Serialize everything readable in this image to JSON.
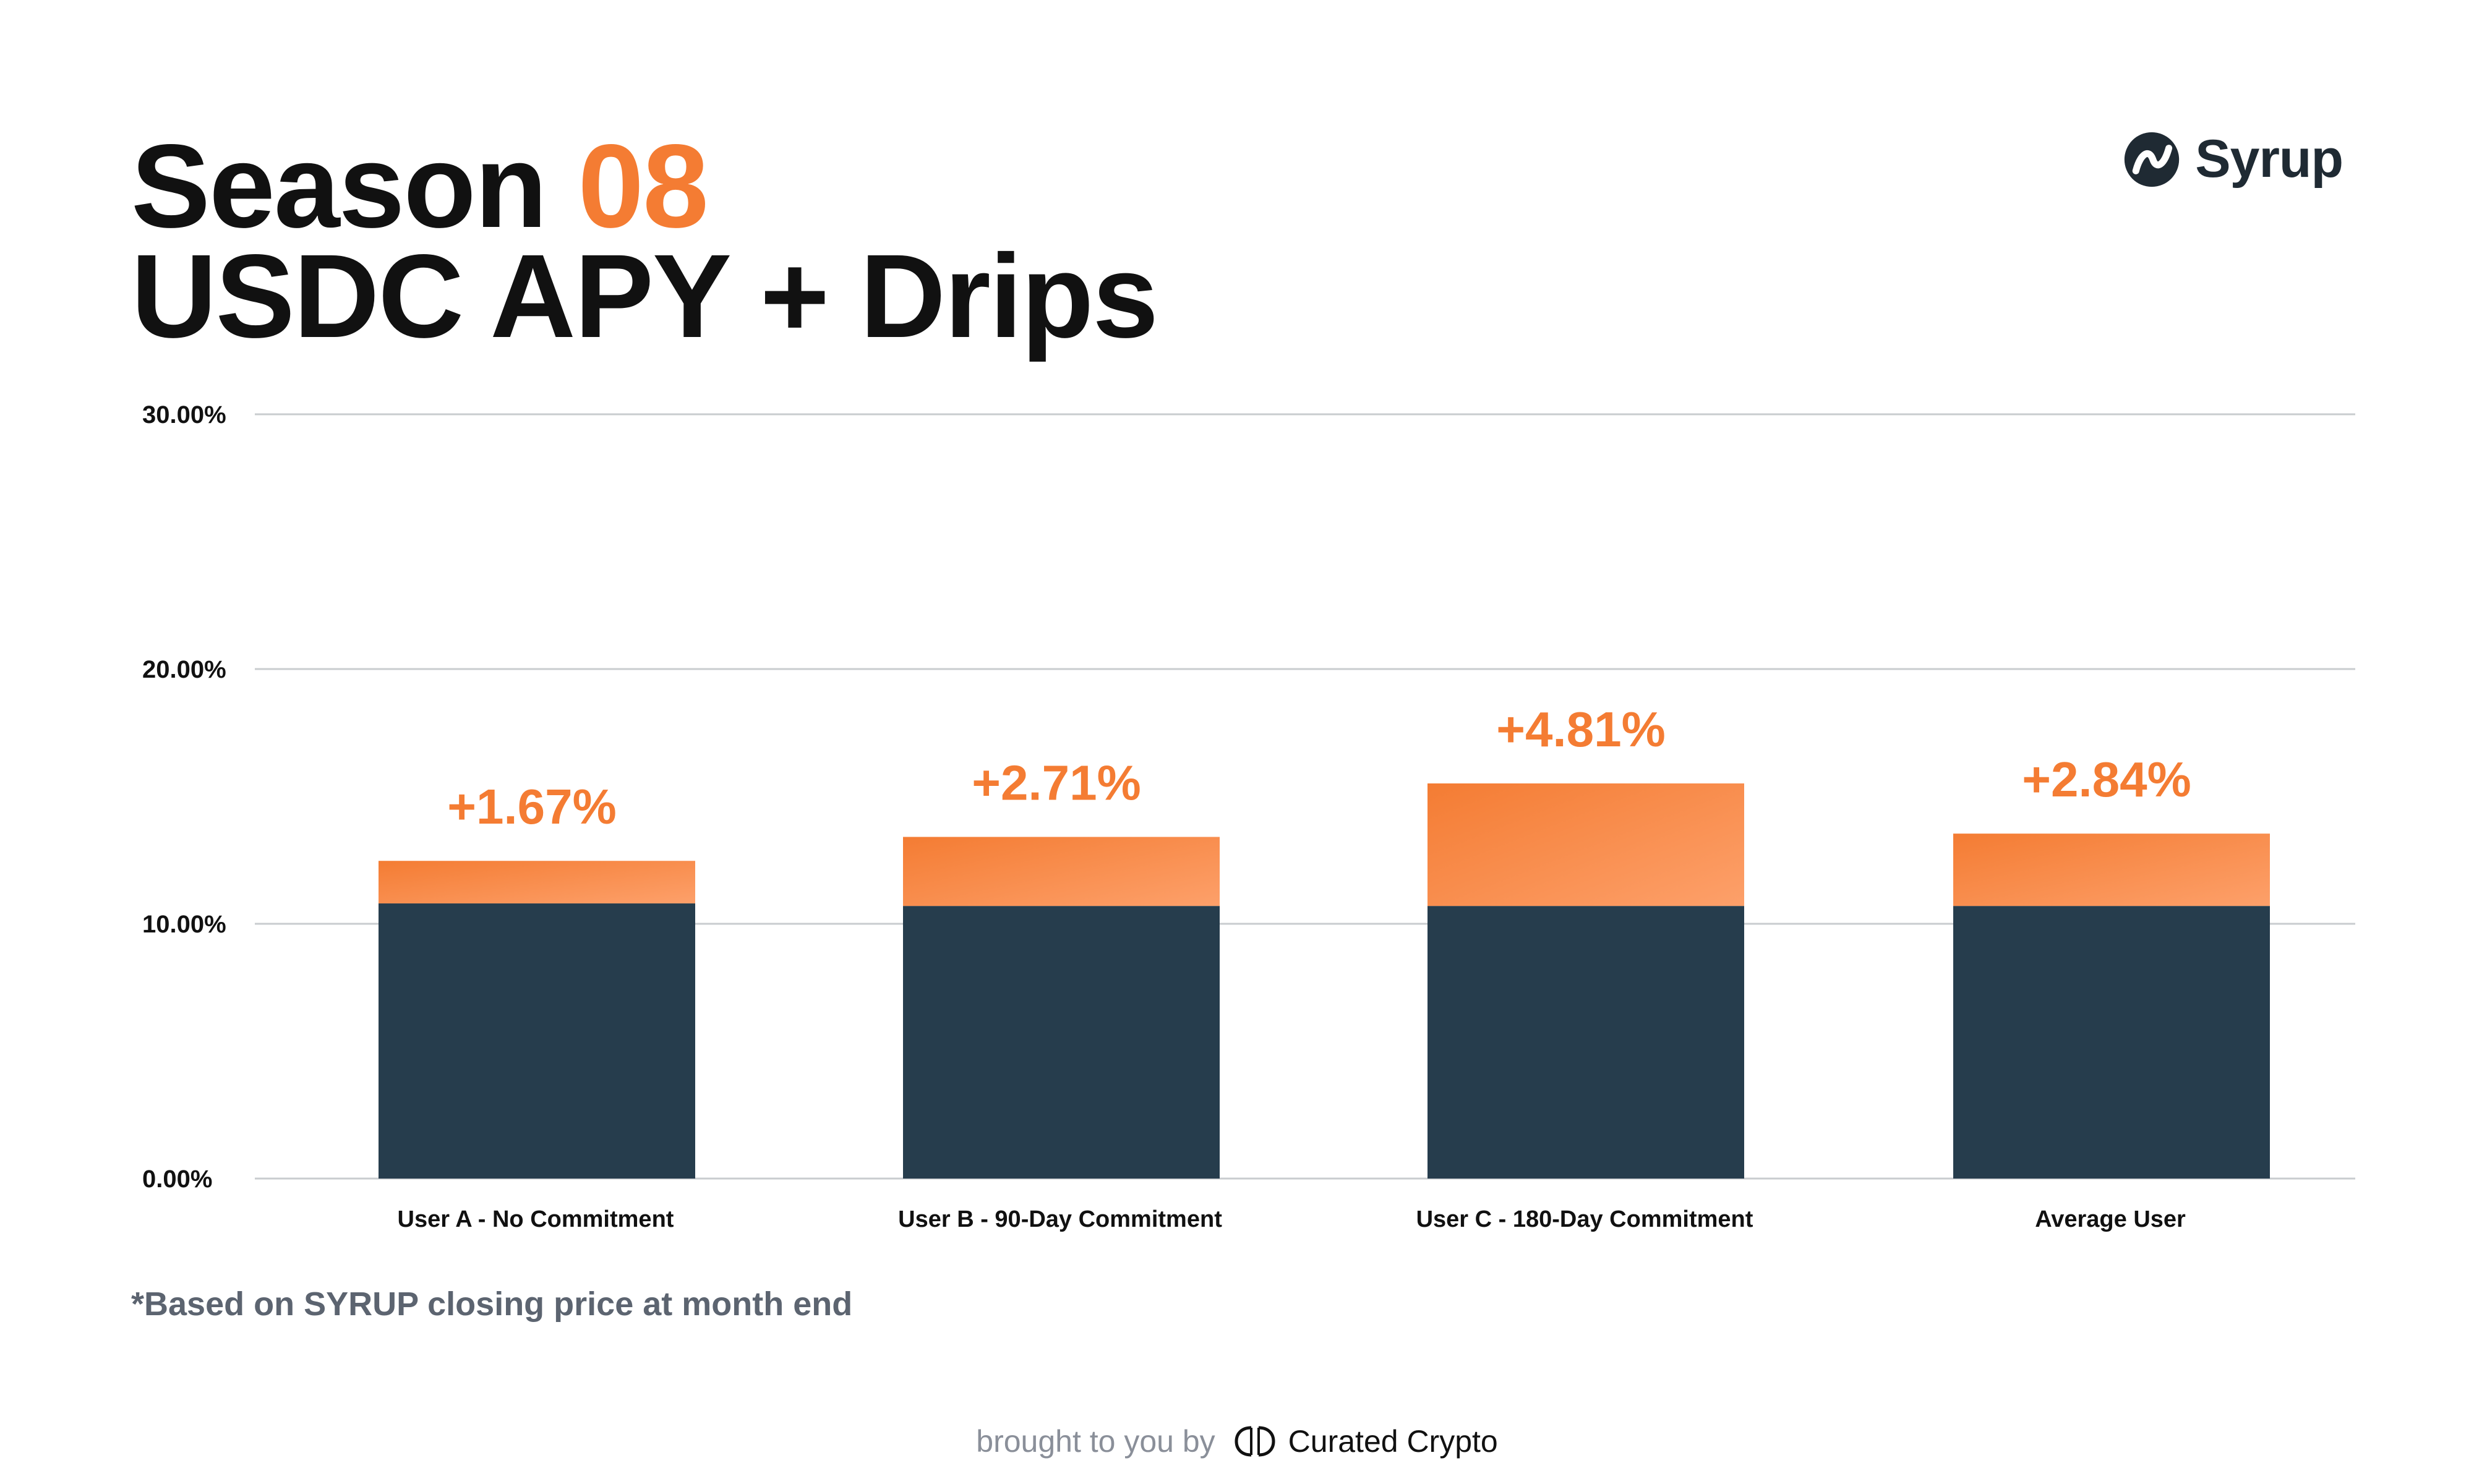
{
  "header": {
    "title_word": "Season",
    "title_number": "08",
    "subtitle": "USDC APY + Drips"
  },
  "brand": {
    "logo_name": "syrup-logo",
    "logo_text": "Syrup"
  },
  "colors": {
    "accent": "#f47c33",
    "accent_light": "#fda06a",
    "base_bar": "#263d4d",
    "grid": "#c9cccf",
    "text": "#111111",
    "footnote": "#5c6470"
  },
  "chart_data": {
    "type": "bar",
    "stacked": true,
    "categories": [
      "User A - No Commitment",
      "User B - 90-Day Commitment",
      "User C - 180-Day Commitment",
      "Average User"
    ],
    "series": [
      {
        "name": "USDC APY",
        "color": "#263d4d",
        "values": [
          10.8,
          10.7,
          10.7,
          10.7
        ]
      },
      {
        "name": "Drips",
        "color": "#f47c33",
        "values": [
          1.67,
          2.71,
          4.81,
          2.84
        ]
      }
    ],
    "data_labels": [
      "+1.67%",
      "+2.71%",
      "+4.81%",
      "+2.84%"
    ],
    "ylim": [
      0,
      30
    ],
    "yticks": [
      0,
      10,
      20,
      30
    ],
    "ytick_labels": [
      "0.00%",
      "10.00%",
      "20.00%",
      "30.00%"
    ],
    "grid": true,
    "title": "Season 08 USDC APY + Drips",
    "xlabel": "",
    "ylabel": ""
  },
  "footnote": "*Based on SYRUP closing price at month end",
  "credit": {
    "prefix": "brought to you by",
    "brand_name": "Curated Crypto",
    "brand_icon": "curated-crypto-logo"
  }
}
